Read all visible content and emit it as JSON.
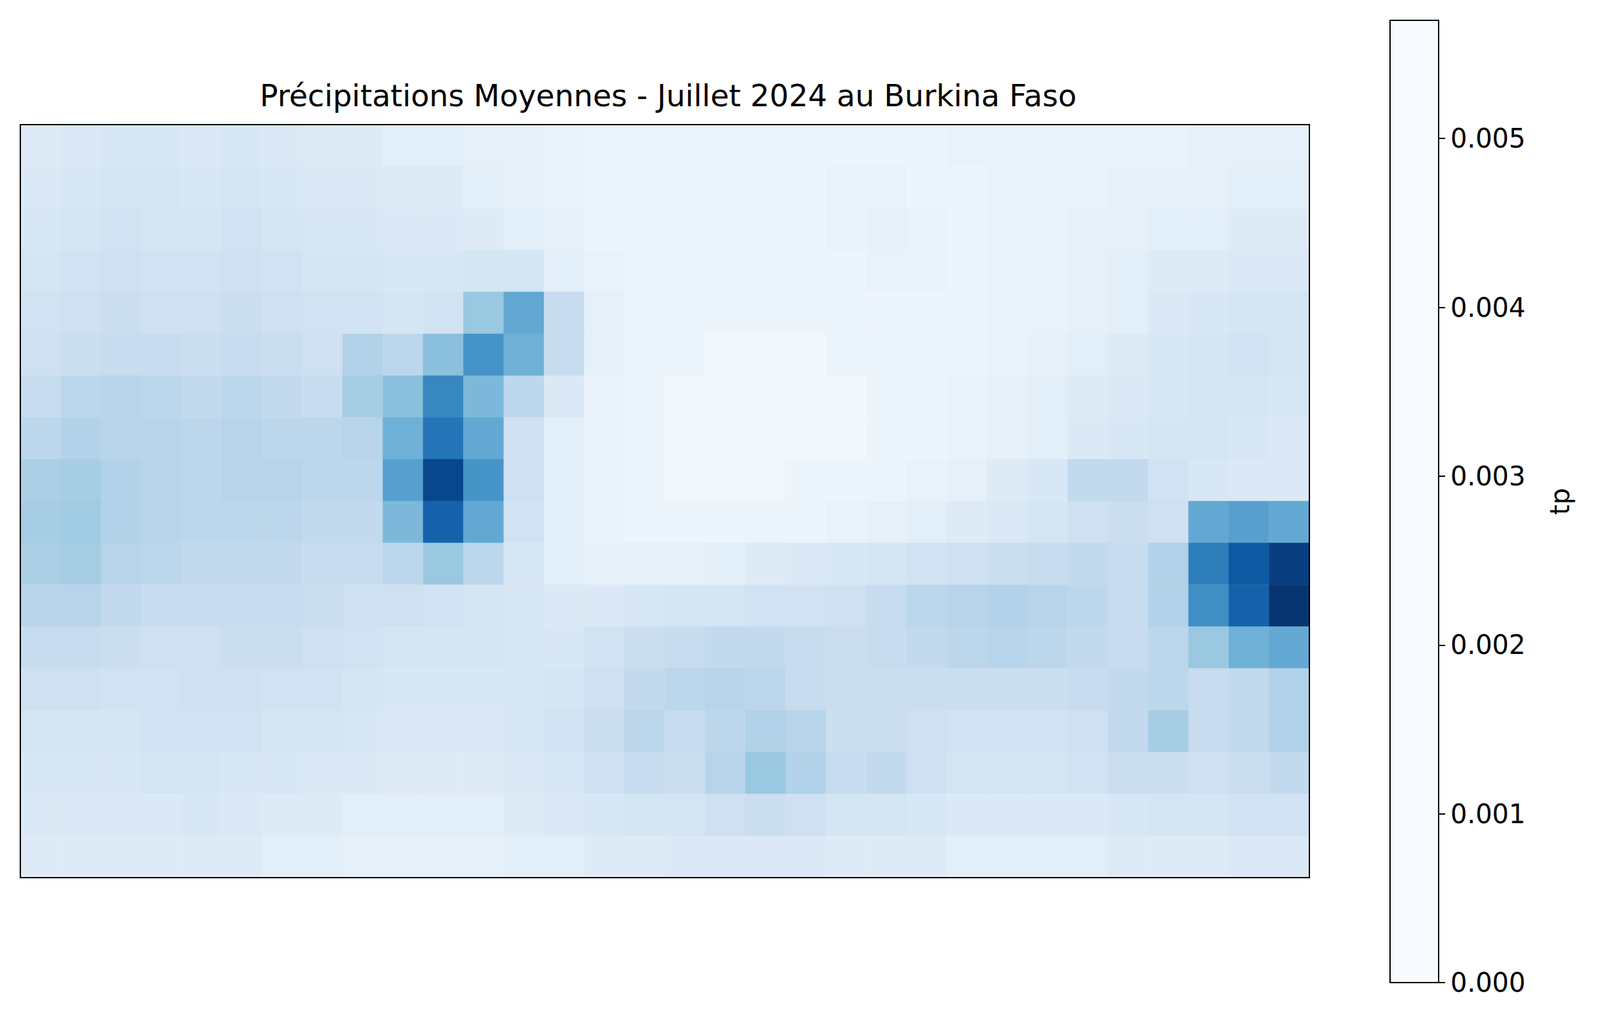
{
  "chart_data": {
    "type": "heatmap",
    "title": "Précipitations Moyennes - Juillet 2024 au Burkina Faso",
    "tick_labels": false,
    "cells": [
      [
        0.0007,
        0.0008,
        0.0009,
        0.0009,
        0.0008,
        0.0009,
        0.0008,
        0.0007,
        0.0007,
        0.0006,
        0.0006,
        0.0005,
        0.0005,
        0.0004,
        0.0003,
        0.0003,
        0.0003,
        0.0003,
        0.0003,
        0.0003,
        0.0003,
        0.0003,
        0.0003,
        0.0004,
        0.0004,
        0.0004,
        0.0004,
        0.0004,
        0.0004,
        0.0005,
        0.0005,
        0.0005
      ],
      [
        0.0008,
        0.0009,
        0.001,
        0.001,
        0.0009,
        0.001,
        0.0009,
        0.0008,
        0.0008,
        0.0007,
        0.0007,
        0.0006,
        0.0005,
        0.0004,
        0.0003,
        0.0003,
        0.0003,
        0.0003,
        0.0003,
        0.0003,
        0.0004,
        0.0004,
        0.0003,
        0.0003,
        0.0004,
        0.0004,
        0.0004,
        0.0005,
        0.0005,
        0.0005,
        0.0006,
        0.0006
      ],
      [
        0.0009,
        0.001,
        0.0011,
        0.001,
        0.001,
        0.0011,
        0.001,
        0.0009,
        0.0009,
        0.0008,
        0.0008,
        0.0007,
        0.0006,
        0.0005,
        0.0003,
        0.0003,
        0.0003,
        0.0003,
        0.0003,
        0.0003,
        0.0004,
        0.0005,
        0.0004,
        0.0003,
        0.0004,
        0.0004,
        0.0005,
        0.0005,
        0.0006,
        0.0006,
        0.0007,
        0.0007
      ],
      [
        0.001,
        0.0011,
        0.0012,
        0.0011,
        0.0011,
        0.0012,
        0.0011,
        0.001,
        0.001,
        0.0009,
        0.0009,
        0.001,
        0.001,
        0.0006,
        0.0004,
        0.0003,
        0.0003,
        0.0003,
        0.0003,
        0.0003,
        0.0003,
        0.0004,
        0.0004,
        0.0003,
        0.0004,
        0.0004,
        0.0005,
        0.0006,
        0.0007,
        0.0007,
        0.0008,
        0.0008
      ],
      [
        0.0011,
        0.0012,
        0.0013,
        0.0012,
        0.0012,
        0.0013,
        0.0012,
        0.0011,
        0.0011,
        0.001,
        0.0011,
        0.0022,
        0.003,
        0.0014,
        0.0005,
        0.0003,
        0.0003,
        0.0003,
        0.0003,
        0.0003,
        0.0003,
        0.0003,
        0.0003,
        0.0003,
        0.0004,
        0.0004,
        0.0005,
        0.0006,
        0.0008,
        0.0009,
        0.001,
        0.001
      ],
      [
        0.0012,
        0.0013,
        0.0014,
        0.0014,
        0.0013,
        0.0014,
        0.0013,
        0.0012,
        0.0018,
        0.0016,
        0.0024,
        0.0035,
        0.0028,
        0.0014,
        0.0005,
        0.0003,
        0.0003,
        0.0002,
        0.0002,
        0.0002,
        0.0003,
        0.0003,
        0.0003,
        0.0003,
        0.0004,
        0.0005,
        0.0006,
        0.0007,
        0.0009,
        0.001,
        0.0011,
        0.001
      ],
      [
        0.0014,
        0.0016,
        0.0017,
        0.0016,
        0.0015,
        0.0016,
        0.0015,
        0.0014,
        0.002,
        0.0024,
        0.0038,
        0.0026,
        0.0016,
        0.0008,
        0.0004,
        0.0003,
        0.0002,
        0.0002,
        0.0002,
        0.0002,
        0.0002,
        0.0003,
        0.0003,
        0.0004,
        0.0005,
        0.0006,
        0.0007,
        0.0008,
        0.0009,
        0.001,
        0.001,
        0.0009
      ],
      [
        0.0016,
        0.0018,
        0.0017,
        0.0017,
        0.0016,
        0.0017,
        0.0016,
        0.0016,
        0.0017,
        0.0028,
        0.0042,
        0.003,
        0.0012,
        0.0006,
        0.0004,
        0.0003,
        0.0002,
        0.0002,
        0.0002,
        0.0002,
        0.0002,
        0.0003,
        0.0003,
        0.0004,
        0.0005,
        0.0006,
        0.0008,
        0.0009,
        0.001,
        0.001,
        0.0009,
        0.0008
      ],
      [
        0.0019,
        0.002,
        0.0018,
        0.0017,
        0.0016,
        0.0017,
        0.0017,
        0.0016,
        0.0016,
        0.0032,
        0.0052,
        0.0035,
        0.0012,
        0.0006,
        0.0004,
        0.0003,
        0.0002,
        0.0002,
        0.0002,
        0.0003,
        0.0003,
        0.0003,
        0.0004,
        0.0005,
        0.0007,
        0.0009,
        0.0015,
        0.0015,
        0.0011,
        0.0009,
        0.0008,
        0.0008
      ],
      [
        0.002,
        0.0021,
        0.0018,
        0.0017,
        0.0016,
        0.0016,
        0.0016,
        0.0015,
        0.0015,
        0.0026,
        0.0046,
        0.003,
        0.0011,
        0.0006,
        0.0004,
        0.0003,
        0.0003,
        0.0003,
        0.0003,
        0.0003,
        0.0004,
        0.0005,
        0.0006,
        0.0007,
        0.0008,
        0.001,
        0.0012,
        0.0013,
        0.0012,
        0.003,
        0.0032,
        0.003
      ],
      [
        0.0019,
        0.002,
        0.0017,
        0.0016,
        0.0015,
        0.0015,
        0.0015,
        0.0014,
        0.0014,
        0.0016,
        0.0022,
        0.0016,
        0.0009,
        0.0006,
        0.0005,
        0.0005,
        0.0005,
        0.0006,
        0.0007,
        0.0008,
        0.0009,
        0.001,
        0.0011,
        0.0012,
        0.0013,
        0.0014,
        0.0015,
        0.0014,
        0.0018,
        0.004,
        0.0048,
        0.0054
      ],
      [
        0.0017,
        0.0017,
        0.0015,
        0.0014,
        0.0014,
        0.0014,
        0.0014,
        0.0013,
        0.0012,
        0.0012,
        0.0011,
        0.001,
        0.0009,
        0.0008,
        0.0008,
        0.0009,
        0.001,
        0.001,
        0.0011,
        0.0011,
        0.0012,
        0.0014,
        0.0016,
        0.0017,
        0.0018,
        0.0017,
        0.0016,
        0.0014,
        0.0018,
        0.0036,
        0.0046,
        0.0056
      ],
      [
        0.0014,
        0.0014,
        0.0013,
        0.0012,
        0.0012,
        0.0013,
        0.0013,
        0.0012,
        0.0011,
        0.001,
        0.001,
        0.001,
        0.0009,
        0.0009,
        0.0011,
        0.0013,
        0.0014,
        0.0015,
        0.0015,
        0.0014,
        0.0013,
        0.0014,
        0.0015,
        0.0016,
        0.0017,
        0.0016,
        0.0015,
        0.0014,
        0.0016,
        0.0022,
        0.0028,
        0.003
      ],
      [
        0.0012,
        0.0012,
        0.0011,
        0.0011,
        0.0012,
        0.0012,
        0.0011,
        0.0011,
        0.001,
        0.0009,
        0.0009,
        0.0009,
        0.0009,
        0.001,
        0.0012,
        0.0015,
        0.0016,
        0.0017,
        0.0016,
        0.0014,
        0.0013,
        0.0013,
        0.0013,
        0.0013,
        0.0013,
        0.0013,
        0.0014,
        0.0015,
        0.0016,
        0.0014,
        0.0015,
        0.0018
      ],
      [
        0.001,
        0.001,
        0.001,
        0.0011,
        0.0011,
        0.0011,
        0.001,
        0.001,
        0.0009,
        0.0008,
        0.0008,
        0.0008,
        0.0009,
        0.0011,
        0.0013,
        0.0016,
        0.0014,
        0.0016,
        0.0018,
        0.0017,
        0.0013,
        0.0013,
        0.0012,
        0.0011,
        0.0011,
        0.0011,
        0.0012,
        0.0015,
        0.002,
        0.0014,
        0.0015,
        0.0018
      ],
      [
        0.0009,
        0.0009,
        0.0009,
        0.001,
        0.001,
        0.0009,
        0.0009,
        0.0008,
        0.0008,
        0.0007,
        0.0007,
        0.0007,
        0.0008,
        0.0009,
        0.0012,
        0.0014,
        0.0013,
        0.0017,
        0.0022,
        0.0018,
        0.0014,
        0.0015,
        0.0012,
        0.001,
        0.001,
        0.001,
        0.0011,
        0.0013,
        0.0013,
        0.0012,
        0.0013,
        0.0015
      ],
      [
        0.0008,
        0.0008,
        0.0008,
        0.0008,
        0.0009,
        0.0008,
        0.0007,
        0.0007,
        0.0006,
        0.0006,
        0.0006,
        0.0006,
        0.0007,
        0.0008,
        0.0009,
        0.001,
        0.001,
        0.0012,
        0.0013,
        0.0012,
        0.001,
        0.001,
        0.0009,
        0.0008,
        0.0008,
        0.0008,
        0.0008,
        0.0009,
        0.001,
        0.001,
        0.0011,
        0.0011
      ],
      [
        0.0007,
        0.0007,
        0.0007,
        0.0007,
        0.0007,
        0.0007,
        0.0006,
        0.0006,
        0.0005,
        0.0005,
        0.0005,
        0.0005,
        0.0006,
        0.0006,
        0.0007,
        0.0007,
        0.0008,
        0.0008,
        0.0008,
        0.0008,
        0.0007,
        0.0007,
        0.0007,
        0.0006,
        0.0006,
        0.0006,
        0.0006,
        0.0007,
        0.0007,
        0.0007,
        0.0008,
        0.0008
      ]
    ],
    "colorbar": {
      "label": "tp",
      "range": [
        0,
        0.0057
      ],
      "ticks": [
        {
          "value": 0,
          "label": "0.000"
        },
        {
          "value": 0.001,
          "label": "0.001"
        },
        {
          "value": 0.002,
          "label": "0.002"
        },
        {
          "value": 0.003,
          "label": "0.003"
        },
        {
          "value": 0.004,
          "label": "0.004"
        },
        {
          "value": 0.005,
          "label": "0.005"
        }
      ]
    }
  }
}
